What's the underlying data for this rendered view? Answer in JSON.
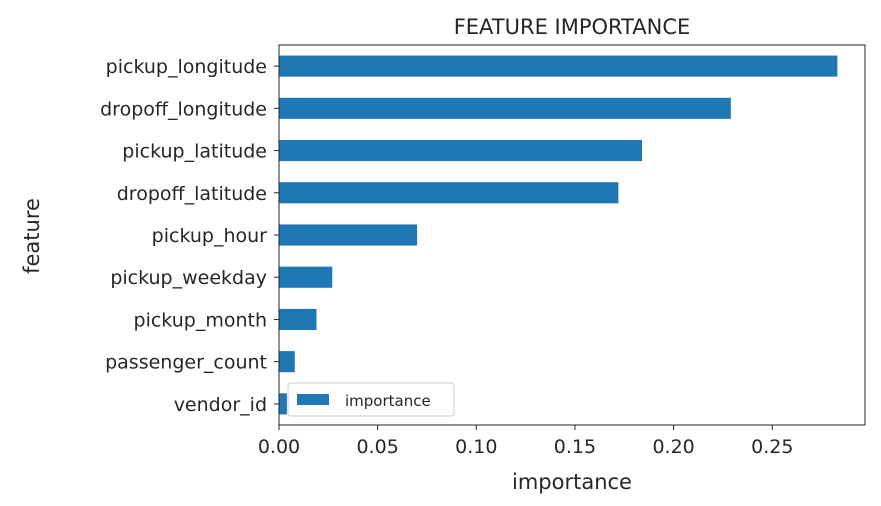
{
  "chart_data": {
    "type": "bar",
    "orientation": "horizontal",
    "title": "FEATURE IMPORTANCE",
    "xlabel": "importance",
    "ylabel": "feature",
    "categories": [
      "pickup_longitude",
      "dropoff_longitude",
      "pickup_latitude",
      "dropoff_latitude",
      "pickup_hour",
      "pickup_weekday",
      "pickup_month",
      "passenger_count",
      "vendor_id"
    ],
    "series": [
      {
        "name": "importance",
        "values": [
          0.283,
          0.229,
          0.184,
          0.172,
          0.07,
          0.027,
          0.019,
          0.008,
          0.004
        ],
        "color": "#1f77b4"
      }
    ],
    "xlim": [
      0,
      0.297
    ],
    "xticks": [
      0.0,
      0.05,
      0.1,
      0.15,
      0.2,
      0.25
    ],
    "xtick_labels": [
      "0.00",
      "0.05",
      "0.10",
      "0.15",
      "0.20",
      "0.25"
    ],
    "grid": false,
    "legend": {
      "position": "lower-left",
      "entries": [
        "importance"
      ]
    }
  }
}
